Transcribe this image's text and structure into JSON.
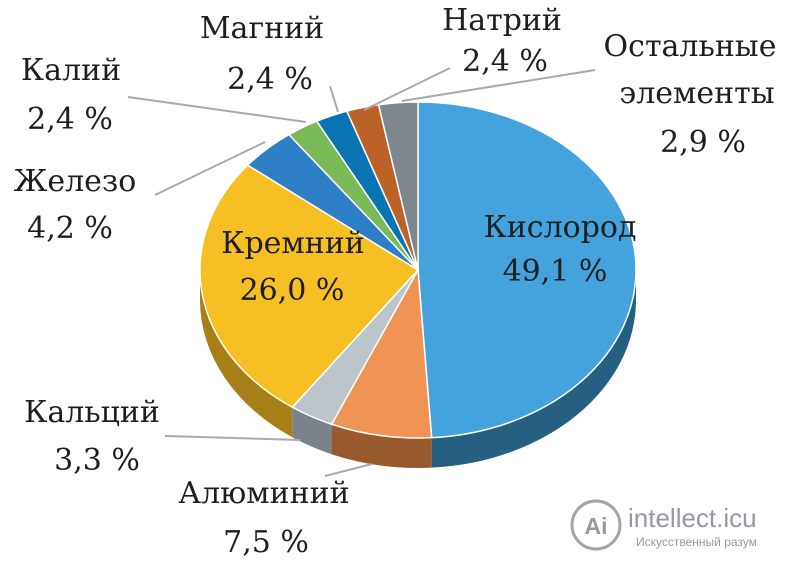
{
  "chart_data": {
    "type": "pie",
    "title": "",
    "style": "3d",
    "slices": [
      {
        "name": "Кислород",
        "value": 49.1,
        "value_label": "49,1 %",
        "color": "#44a3dc",
        "side_color": "#255f82"
      },
      {
        "name": "Алюминий",
        "value": 7.5,
        "value_label": "7,5 %",
        "color": "#ef9454",
        "side_color": "#985a2d"
      },
      {
        "name": "Кальций",
        "value": 3.3,
        "value_label": "3,3 %",
        "color": "#bcc4cc",
        "side_color": "#7b8289"
      },
      {
        "name": "Кремний",
        "value": 26.0,
        "value_label": "26,0 %",
        "color": "#f6c024",
        "side_color": "#a87f16"
      },
      {
        "name": "Железо",
        "value": 4.2,
        "value_label": "4,2 %",
        "color": "#2f7fc6",
        "side_color": "#1d4f7c"
      },
      {
        "name": "Калий",
        "value": 2.4,
        "value_label": "2,4 %",
        "color": "#7bbb57",
        "side_color": "#4f7a37"
      },
      {
        "name": "Магний",
        "value": 2.4,
        "value_label": "2,4 %",
        "color": "#0974b1",
        "side_color": "#064a72"
      },
      {
        "name": "Натрий",
        "value": 2.4,
        "value_label": "2,4 %",
        "color": "#bb6228",
        "side_color": "#7a3f19"
      },
      {
        "name": "Остальные элементы",
        "name_lines": [
          "Остальные",
          "элементы"
        ],
        "value": 2.9,
        "value_label": "2,9 %",
        "color": "#7e868e",
        "side_color": "#51575d"
      }
    ]
  },
  "watermark": {
    "logo_glyph": "Ai",
    "site": "intellect.icu",
    "tagline": "Искусственный разум",
    "color": "#8e96a0"
  }
}
